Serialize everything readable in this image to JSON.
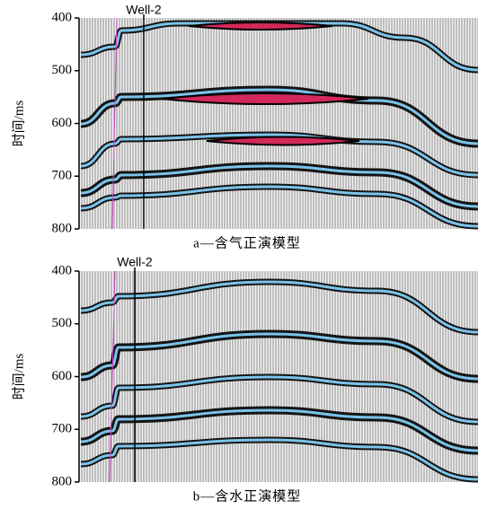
{
  "chart_data": [
    {
      "type": "seismic",
      "title": "a—含气正演模型",
      "y_label": "时间/ms",
      "annotation": "Well-2",
      "ylim": [
        800,
        400
      ],
      "yticks": [
        400,
        500,
        600,
        700,
        800
      ]
    },
    {
      "type": "seismic",
      "title": "b—含水正演模型",
      "y_label": "时间/ms",
      "annotation": "Well-2",
      "ylim": [
        800,
        400
      ],
      "yticks": [
        400,
        500,
        600,
        700,
        800
      ]
    }
  ]
}
